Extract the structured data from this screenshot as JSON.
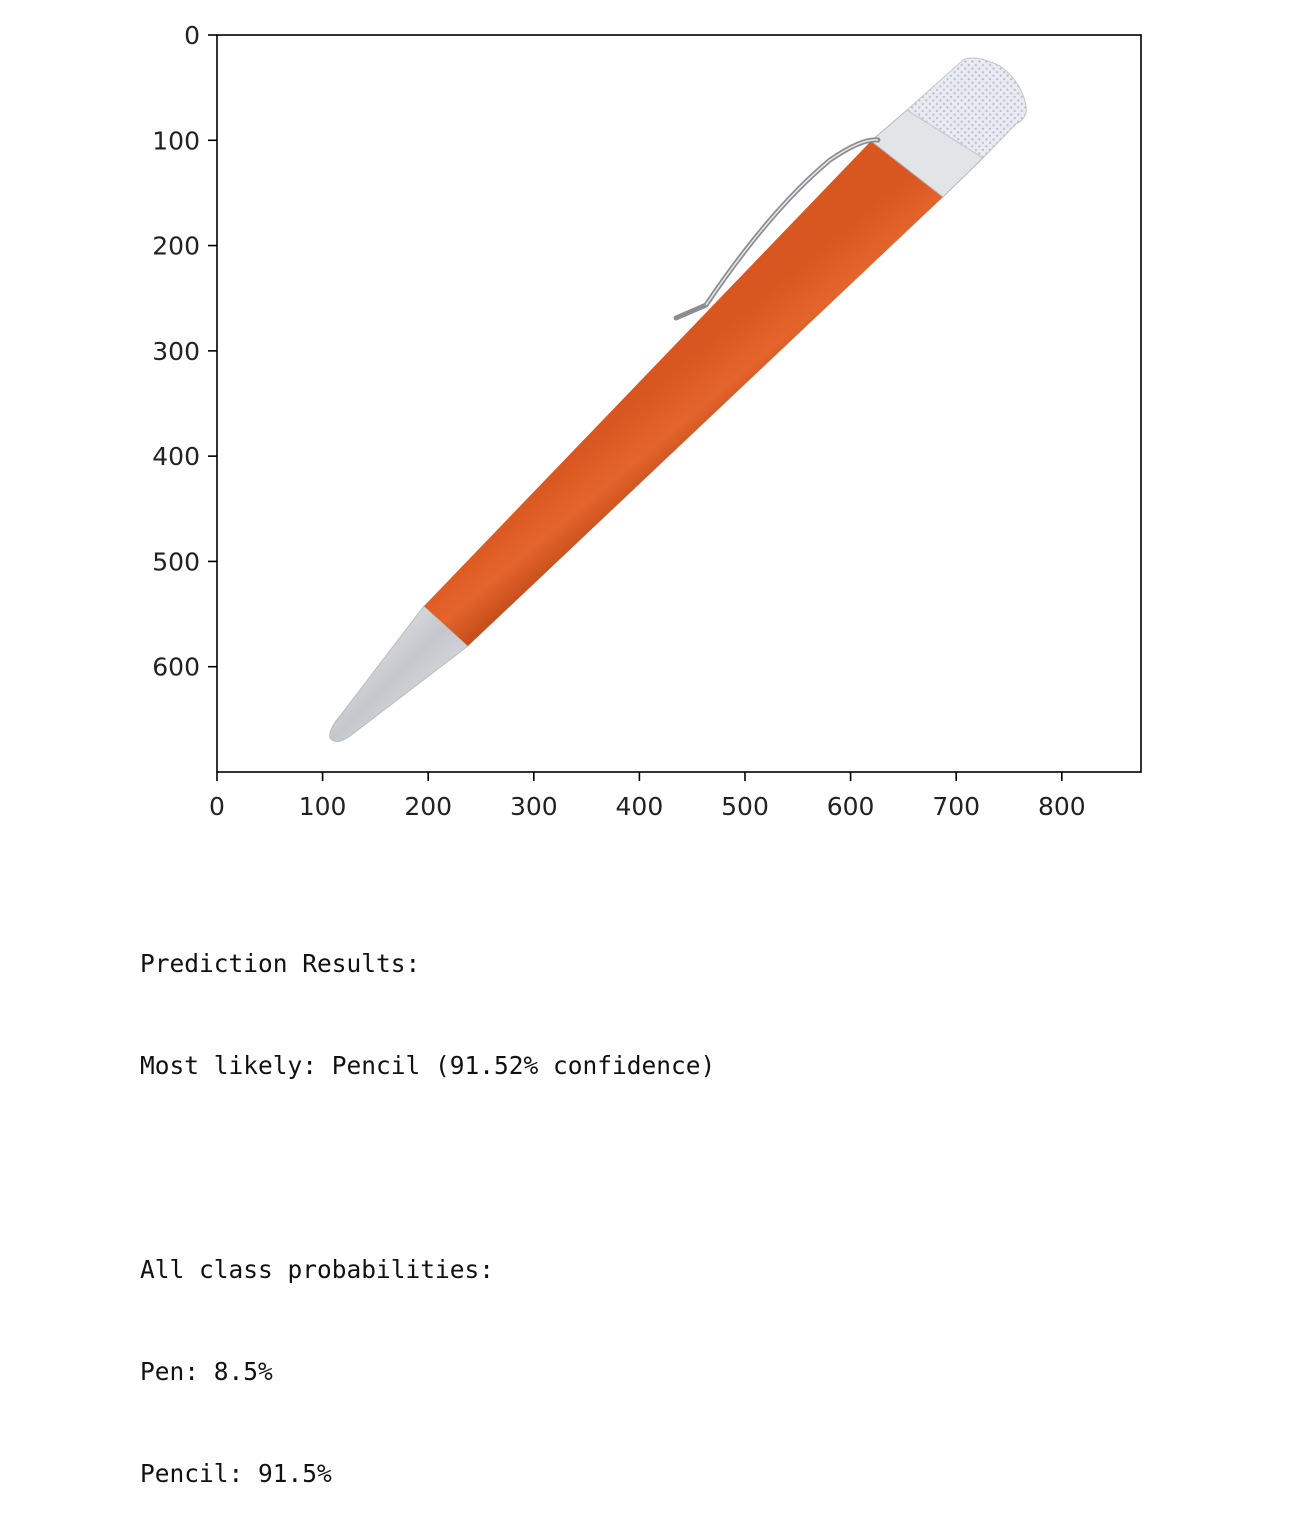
{
  "figure": {
    "image_description": "orange retractable pen with silver tip, clip and knurled cap",
    "x_ticks": [
      "0",
      "100",
      "200",
      "300",
      "400",
      "500",
      "600",
      "700",
      "800"
    ],
    "y_ticks": [
      "0",
      "100",
      "200",
      "300",
      "400",
      "500",
      "600"
    ],
    "x_tick_values": [
      0,
      100,
      200,
      300,
      400,
      500,
      600,
      700,
      800
    ],
    "y_tick_values": [
      0,
      100,
      200,
      300,
      400,
      500,
      600
    ],
    "xlim": [
      0,
      875
    ],
    "ylim": [
      700,
      0
    ],
    "colors": {
      "body": "#e0622e",
      "metal": "#c9ccd1",
      "axes": "#000000"
    }
  },
  "output": {
    "heading": "Prediction Results:",
    "most_likely": "Most likely: Pencil (91.52% confidence)",
    "probs_heading": "All class probabilities:",
    "probabilities": [
      "Pen: 8.5%",
      "Pencil: 91.5%"
    ]
  }
}
